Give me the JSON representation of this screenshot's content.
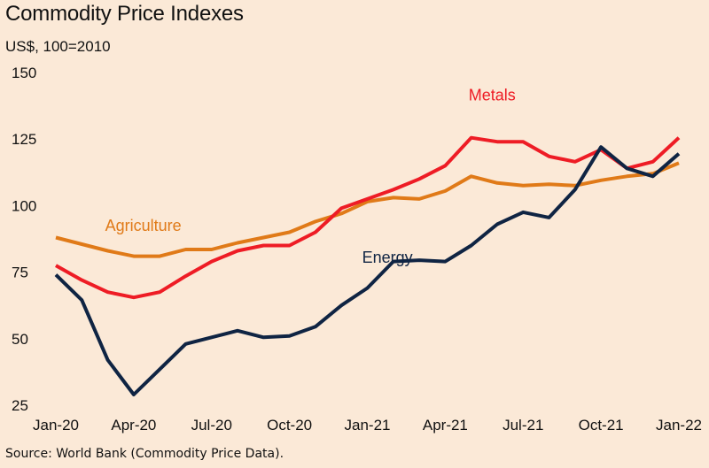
{
  "chart_data": {
    "type": "line",
    "title": "Commodity Price Indexes",
    "subtitle": "US$, 100=2010",
    "source": "Source: World Bank (Commodity Price Data).",
    "ylim": [
      25,
      150
    ],
    "yticks": [
      25,
      50,
      75,
      100,
      125,
      150
    ],
    "xtick_labels": [
      "Jan-20",
      "Apr-20",
      "Jul-20",
      "Oct-20",
      "Jan-21",
      "Apr-21",
      "Jul-21",
      "Oct-21",
      "Jan-22"
    ],
    "x": [
      "Jan-20",
      "Feb-20",
      "Mar-20",
      "Apr-20",
      "May-20",
      "Jun-20",
      "Jul-20",
      "Aug-20",
      "Sep-20",
      "Oct-20",
      "Nov-20",
      "Dec-20",
      "Jan-21",
      "Feb-21",
      "Mar-21",
      "Apr-21",
      "May-21",
      "Jun-21",
      "Jul-21",
      "Aug-21",
      "Sep-21",
      "Oct-21",
      "Nov-21",
      "Dec-21",
      "Jan-22"
    ],
    "grid": false,
    "series": [
      {
        "name": "Metals",
        "color": "#ee1c25",
        "values": [
          77.5,
          72,
          67.5,
          65.5,
          67.5,
          73.5,
          79,
          83,
          85,
          85,
          90,
          99,
          102.5,
          106,
          110,
          115,
          125.5,
          124,
          124,
          118.5,
          116.5,
          121,
          114,
          116.5,
          125.5
        ]
      },
      {
        "name": "Agriculture",
        "color": "#e07a18",
        "values": [
          88,
          85.5,
          83,
          81,
          81,
          83.5,
          83.5,
          86,
          88,
          90,
          94,
          97,
          101.5,
          103,
          102.5,
          105.5,
          111,
          108.5,
          107.5,
          108,
          107.5,
          109.5,
          111,
          112,
          116
        ]
      },
      {
        "name": "Energy",
        "color": "#0f2443",
        "values": [
          74,
          64.5,
          42,
          29,
          38.5,
          48,
          50.5,
          53,
          50.5,
          51,
          54.5,
          62.5,
          69,
          79,
          79.5,
          79,
          85,
          93,
          97.5,
          95.5,
          106,
          122,
          114,
          111,
          119.5
        ]
      }
    ]
  }
}
